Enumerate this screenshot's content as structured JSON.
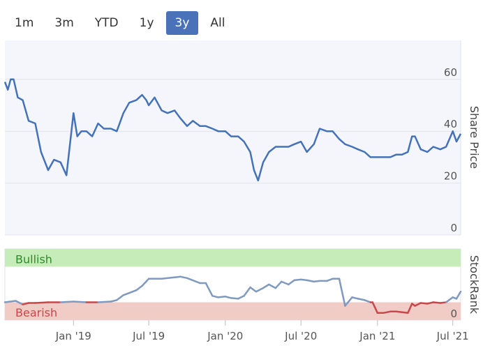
{
  "range_selector": {
    "buttons": [
      "1m",
      "3m",
      "YTD",
      "1y",
      "3y",
      "All"
    ],
    "active_index": 4
  },
  "colors": {
    "price_line": "#4472b9",
    "rank_line": "#7f99bf",
    "rank_bearish_line": "#c9474a",
    "bullish_band": "#c6edb9",
    "bearish_band": "#f1ccc7",
    "bullish_text": "#2f8a2a",
    "bearish_text": "#c9474a",
    "plot_bg": "#f5f6fb"
  },
  "chart_data": [
    {
      "type": "line",
      "ylabel": "Share Price",
      "ylim": [
        0,
        75
      ],
      "yticks": [
        0,
        20,
        40,
        60
      ],
      "xlim": [
        "2018-07-20",
        "2021-07-20"
      ],
      "grid": true,
      "series": [
        {
          "x": [
            "2018-07-20",
            "2018-07-27",
            "2018-08-03",
            "2018-08-10",
            "2018-08-20",
            "2018-09-01",
            "2018-09-15",
            "2018-10-01",
            "2018-10-15",
            "2018-11-01",
            "2018-11-15",
            "2018-12-01",
            "2018-12-15",
            "2019-01-01",
            "2019-01-10",
            "2019-01-20",
            "2019-02-01",
            "2019-02-15",
            "2019-03-01",
            "2019-03-15",
            "2019-04-01",
            "2019-04-15",
            "2019-05-01",
            "2019-05-15",
            "2019-06-01",
            "2019-06-15",
            "2019-06-25",
            "2019-07-01",
            "2019-07-15",
            "2019-08-01",
            "2019-08-15",
            "2019-09-01",
            "2019-09-15",
            "2019-10-01",
            "2019-10-15",
            "2019-11-01",
            "2019-11-15",
            "2019-12-01",
            "2019-12-15",
            "2020-01-01",
            "2020-01-15",
            "2020-02-01",
            "2020-02-15",
            "2020-03-01",
            "2020-03-10",
            "2020-03-20",
            "2020-04-01",
            "2020-04-15",
            "2020-05-01",
            "2020-05-15",
            "2020-06-01",
            "2020-06-15",
            "2020-07-01",
            "2020-07-15",
            "2020-08-01",
            "2020-08-15",
            "2020-09-01",
            "2020-09-15",
            "2020-10-01",
            "2020-10-15",
            "2020-11-01",
            "2020-11-15",
            "2020-12-01",
            "2020-12-15",
            "2021-01-01",
            "2021-01-15",
            "2021-02-01",
            "2021-02-15",
            "2021-03-01",
            "2021-03-15",
            "2021-03-25",
            "2021-04-01",
            "2021-04-15",
            "2021-05-01",
            "2021-05-15",
            "2021-06-01",
            "2021-06-15",
            "2021-07-01",
            "2021-07-10",
            "2021-07-20"
          ],
          "y": [
            59,
            56,
            60,
            60,
            53,
            52,
            44,
            43,
            32,
            25,
            29,
            28,
            23,
            47,
            38,
            40,
            40,
            38,
            43,
            41,
            41,
            40,
            47,
            51,
            52,
            54,
            52,
            50,
            53,
            48,
            47,
            48,
            45,
            42,
            44,
            42,
            42,
            41,
            40,
            40,
            38,
            38,
            36,
            32,
            25,
            21,
            28,
            32,
            34,
            34,
            34,
            35,
            36,
            32,
            35,
            41,
            40,
            40,
            37,
            35,
            34,
            33,
            32,
            30,
            30,
            30,
            30,
            31,
            31,
            32,
            38,
            38,
            33,
            32,
            34,
            33,
            34,
            40,
            36,
            39
          ]
        }
      ]
    },
    {
      "type": "line",
      "ylabel": "StockRank",
      "ylim": [
        0,
        100
      ],
      "yticks": [
        0
      ],
      "bands": [
        {
          "label": "Bullish",
          "from": 75,
          "to": 100
        },
        {
          "label": "Bearish",
          "from": 0,
          "to": 25
        }
      ],
      "xticks": [
        "Jan '19",
        "Jul '19",
        "Jan '20",
        "Jul '20",
        "Jan '21",
        "Jul '21"
      ],
      "xtick_dates": [
        "2019-01-01",
        "2019-07-01",
        "2020-01-01",
        "2020-07-01",
        "2021-01-01",
        "2021-07-01"
      ],
      "series": [
        {
          "x": [
            "2018-07-20",
            "2018-08-15",
            "2018-09-01",
            "2018-09-15",
            "2018-10-01",
            "2018-11-01",
            "2018-12-01",
            "2019-01-01",
            "2019-02-01",
            "2019-03-01",
            "2019-04-01",
            "2019-04-15",
            "2019-05-01",
            "2019-05-15",
            "2019-06-01",
            "2019-06-15",
            "2019-07-01",
            "2019-08-01",
            "2019-09-01",
            "2019-09-15",
            "2019-10-01",
            "2019-11-01",
            "2019-11-15",
            "2019-12-01",
            "2019-12-15",
            "2020-01-01",
            "2020-01-15",
            "2020-02-01",
            "2020-02-15",
            "2020-03-01",
            "2020-03-15",
            "2020-04-01",
            "2020-04-15",
            "2020-05-01",
            "2020-05-15",
            "2020-06-01",
            "2020-06-15",
            "2020-07-01",
            "2020-07-15",
            "2020-08-01",
            "2020-08-15",
            "2020-09-01",
            "2020-09-15",
            "2020-10-01",
            "2020-10-15",
            "2020-11-01",
            "2020-11-15",
            "2020-12-01",
            "2020-12-15",
            "2020-12-20",
            "2021-01-01",
            "2021-01-15",
            "2021-02-01",
            "2021-02-15",
            "2021-03-01",
            "2021-03-15",
            "2021-03-25",
            "2021-04-01",
            "2021-04-15",
            "2021-05-01",
            "2021-05-15",
            "2021-06-01",
            "2021-06-15",
            "2021-07-01",
            "2021-07-10",
            "2021-07-20"
          ],
          "y": [
            25,
            27,
            22,
            24,
            24,
            25,
            25,
            26,
            25,
            25,
            26,
            28,
            35,
            38,
            42,
            48,
            58,
            58,
            60,
            61,
            59,
            52,
            52,
            34,
            32,
            33,
            31,
            30,
            34,
            46,
            40,
            45,
            50,
            45,
            54,
            50,
            56,
            57,
            56,
            54,
            55,
            55,
            58,
            58,
            20,
            32,
            30,
            28,
            25,
            25,
            10,
            10,
            12,
            12,
            11,
            10,
            23,
            20,
            24,
            23,
            25,
            24,
            25,
            32,
            30,
            40
          ]
        }
      ]
    }
  ]
}
